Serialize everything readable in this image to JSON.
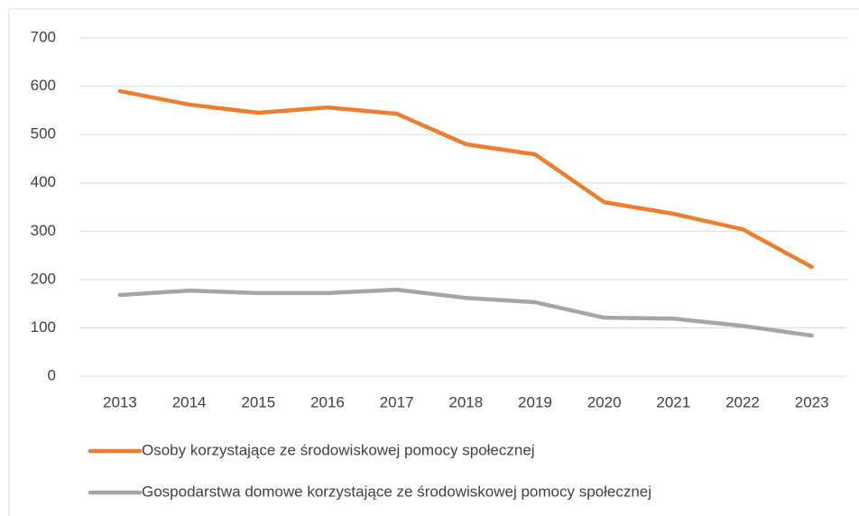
{
  "chart_data": {
    "type": "line",
    "categories": [
      "2013",
      "2014",
      "2015",
      "2016",
      "2017",
      "2018",
      "2019",
      "2020",
      "2021",
      "2022",
      "2023"
    ],
    "series": [
      {
        "name": "Osoby korzystające ze środowiskowej pomocy społecznej",
        "color": "#ed7d31",
        "values": [
          590,
          562,
          545,
          556,
          543,
          480,
          459,
          360,
          336,
          304,
          226
        ]
      },
      {
        "name": "Gospodarstwa domowe korzystające ze środowiskowej pomocy społecznej",
        "color": "#a5a5a5",
        "values": [
          168,
          177,
          172,
          172,
          179,
          162,
          153,
          121,
          119,
          104,
          84
        ]
      }
    ],
    "ylim": [
      0,
      700
    ],
    "yticks": [
      0,
      100,
      200,
      300,
      400,
      500,
      600,
      700
    ],
    "grid": true,
    "legend": "bottom"
  }
}
